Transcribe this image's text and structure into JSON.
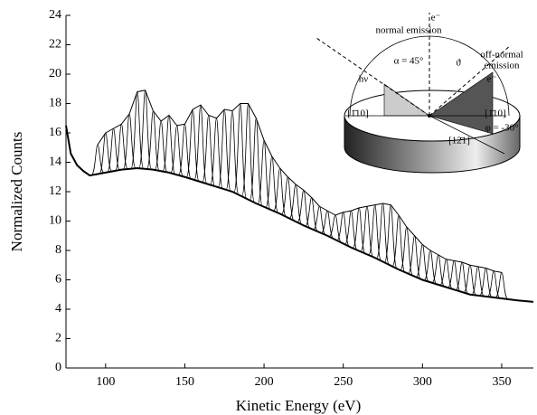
{
  "chart_data": {
    "type": "spectra",
    "xlabel": "Kinetic Energy (eV)",
    "ylabel": "Normalized Counts",
    "xlim": [
      75,
      370
    ],
    "ylim": [
      0,
      24
    ],
    "xticks": [
      100,
      150,
      200,
      250,
      300,
      350
    ],
    "yticks": [
      0,
      2,
      4,
      6,
      8,
      10,
      12,
      14,
      16,
      18,
      20,
      22,
      24
    ],
    "color": "#000000",
    "background": {
      "x": [
        75,
        78,
        82,
        86,
        90,
        95,
        100,
        110,
        120,
        130,
        140,
        150,
        165,
        180,
        195,
        210,
        225,
        240,
        255,
        270,
        285,
        300,
        315,
        330,
        345,
        360,
        370
      ],
      "values": [
        16.5,
        14.6,
        13.8,
        13.4,
        13.1,
        13.2,
        13.3,
        13.5,
        13.6,
        13.5,
        13.3,
        13.0,
        12.5,
        12.0,
        11.2,
        10.5,
        9.7,
        9.0,
        8.2,
        7.5,
        6.7,
        6.0,
        5.5,
        5.0,
        4.8,
        4.6,
        4.5
      ]
    },
    "peaks": {
      "x": [
        95,
        100,
        105,
        110,
        115,
        120,
        125,
        130,
        135,
        140,
        145,
        150,
        155,
        160,
        165,
        170,
        175,
        180,
        185,
        190,
        195,
        200,
        205,
        210,
        215,
        220,
        225,
        230,
        235,
        240,
        245,
        250,
        255,
        260,
        265,
        270,
        275,
        280,
        285,
        290,
        295,
        300,
        305,
        310,
        315,
        320,
        325,
        330,
        335,
        340,
        345,
        350
      ],
      "values": [
        15.2,
        16.0,
        16.3,
        16.6,
        17.3,
        18.8,
        18.9,
        17.5,
        16.8,
        17.2,
        16.5,
        16.6,
        17.6,
        17.9,
        17.2,
        17.0,
        17.6,
        17.5,
        18.0,
        18.0,
        17.0,
        15.5,
        14.4,
        13.6,
        13.0,
        12.5,
        12.1,
        11.6,
        11.0,
        10.7,
        10.4,
        10.6,
        10.7,
        10.9,
        11.0,
        11.1,
        11.2,
        11.1,
        10.4,
        9.6,
        9.0,
        8.4,
        8.0,
        7.7,
        7.4,
        7.3,
        7.2,
        7.0,
        6.9,
        6.8,
        6.6,
        6.5
      ]
    },
    "annotations": [
      "normal emission",
      "e⁻",
      "off-normal",
      "emission",
      "e⁻",
      "α = 45°",
      "ϑ",
      "hν",
      "[1̄10]",
      "[1̄10]",
      "[12̄1]",
      "φ = -30°"
    ]
  }
}
